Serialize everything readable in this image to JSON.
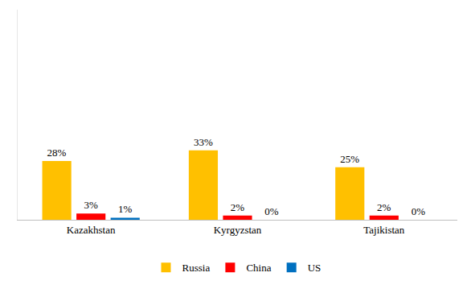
{
  "chart_data": {
    "type": "bar",
    "categories": [
      "Kazakhstan",
      "Kyrgyzstan",
      "Tajikistan"
    ],
    "series": [
      {
        "name": "Russia",
        "color": "#FFC000",
        "values": [
          28,
          33,
          25
        ],
        "value_labels": [
          "28%",
          "33%",
          "25%"
        ]
      },
      {
        "name": "China",
        "color": "#FF0000",
        "values": [
          3,
          2,
          2
        ],
        "value_labels": [
          "3%",
          "2%",
          "2%"
        ]
      },
      {
        "name": "US",
        "color": "#0070C0",
        "values": [
          1,
          0,
          0
        ],
        "value_labels": [
          "1%",
          "0%",
          "0%"
        ]
      }
    ],
    "ylim": [
      0,
      100
    ],
    "yticks": [],
    "grid": false,
    "legend": "bottom",
    "data_labels": true,
    "tick_labels": "x"
  }
}
